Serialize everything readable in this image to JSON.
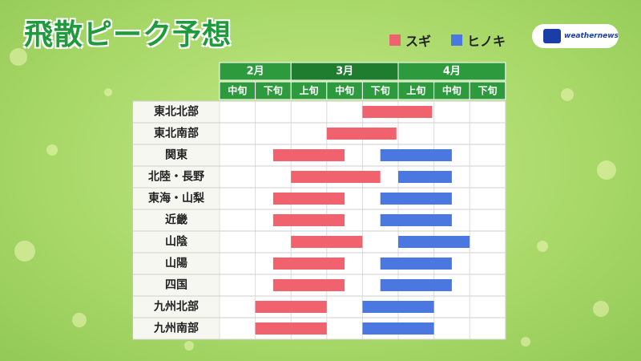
{
  "title": "飛散ピーク予想",
  "legend": [
    {
      "label": "スギ",
      "color": "#f0626e"
    },
    {
      "label": "ヒノキ",
      "color": "#4a78e0"
    }
  ],
  "logo": {
    "icon": "weathernews-logo-icon",
    "text": "weathernews"
  },
  "colors": {
    "header_green": "#2e9a3e",
    "header_active": "#1f7d30",
    "text_white": "#ffffff"
  },
  "chart_data": {
    "type": "bar",
    "subtype": "gantt",
    "months": [
      {
        "label": "2月",
        "span": 2
      },
      {
        "label": "3月",
        "span": 3
      },
      {
        "label": "4月",
        "span": 3
      }
    ],
    "columns": [
      "中旬",
      "下旬",
      "上旬",
      "中旬",
      "下旬",
      "上旬",
      "中旬",
      "下旬"
    ],
    "regions": [
      "東北北部",
      "東北南部",
      "関東",
      "北陸・長野",
      "東海・山梨",
      "近畿",
      "山陰",
      "山陽",
      "四国",
      "九州北部",
      "九州南部"
    ],
    "series": [
      {
        "name": "スギ",
        "ranges": [
          [
            4,
            5.95
          ],
          [
            3,
            4.95
          ],
          [
            1.5,
            3.5
          ],
          [
            2,
            4.5
          ],
          [
            1.5,
            3.5
          ],
          [
            1.5,
            3.5
          ],
          [
            2,
            4
          ],
          [
            1.5,
            3.5
          ],
          [
            1.5,
            3.5
          ],
          [
            1,
            3
          ],
          [
            1,
            3
          ]
        ]
      },
      {
        "name": "ヒノキ",
        "ranges": [
          null,
          null,
          [
            4.5,
            6.5
          ],
          [
            5,
            6.5
          ],
          [
            4.5,
            6.5
          ],
          [
            4.5,
            6.5
          ],
          [
            5,
            7
          ],
          [
            4.5,
            6.5
          ],
          [
            4.5,
            6.5
          ],
          [
            4,
            6
          ],
          [
            4,
            6
          ]
        ]
      }
    ]
  }
}
